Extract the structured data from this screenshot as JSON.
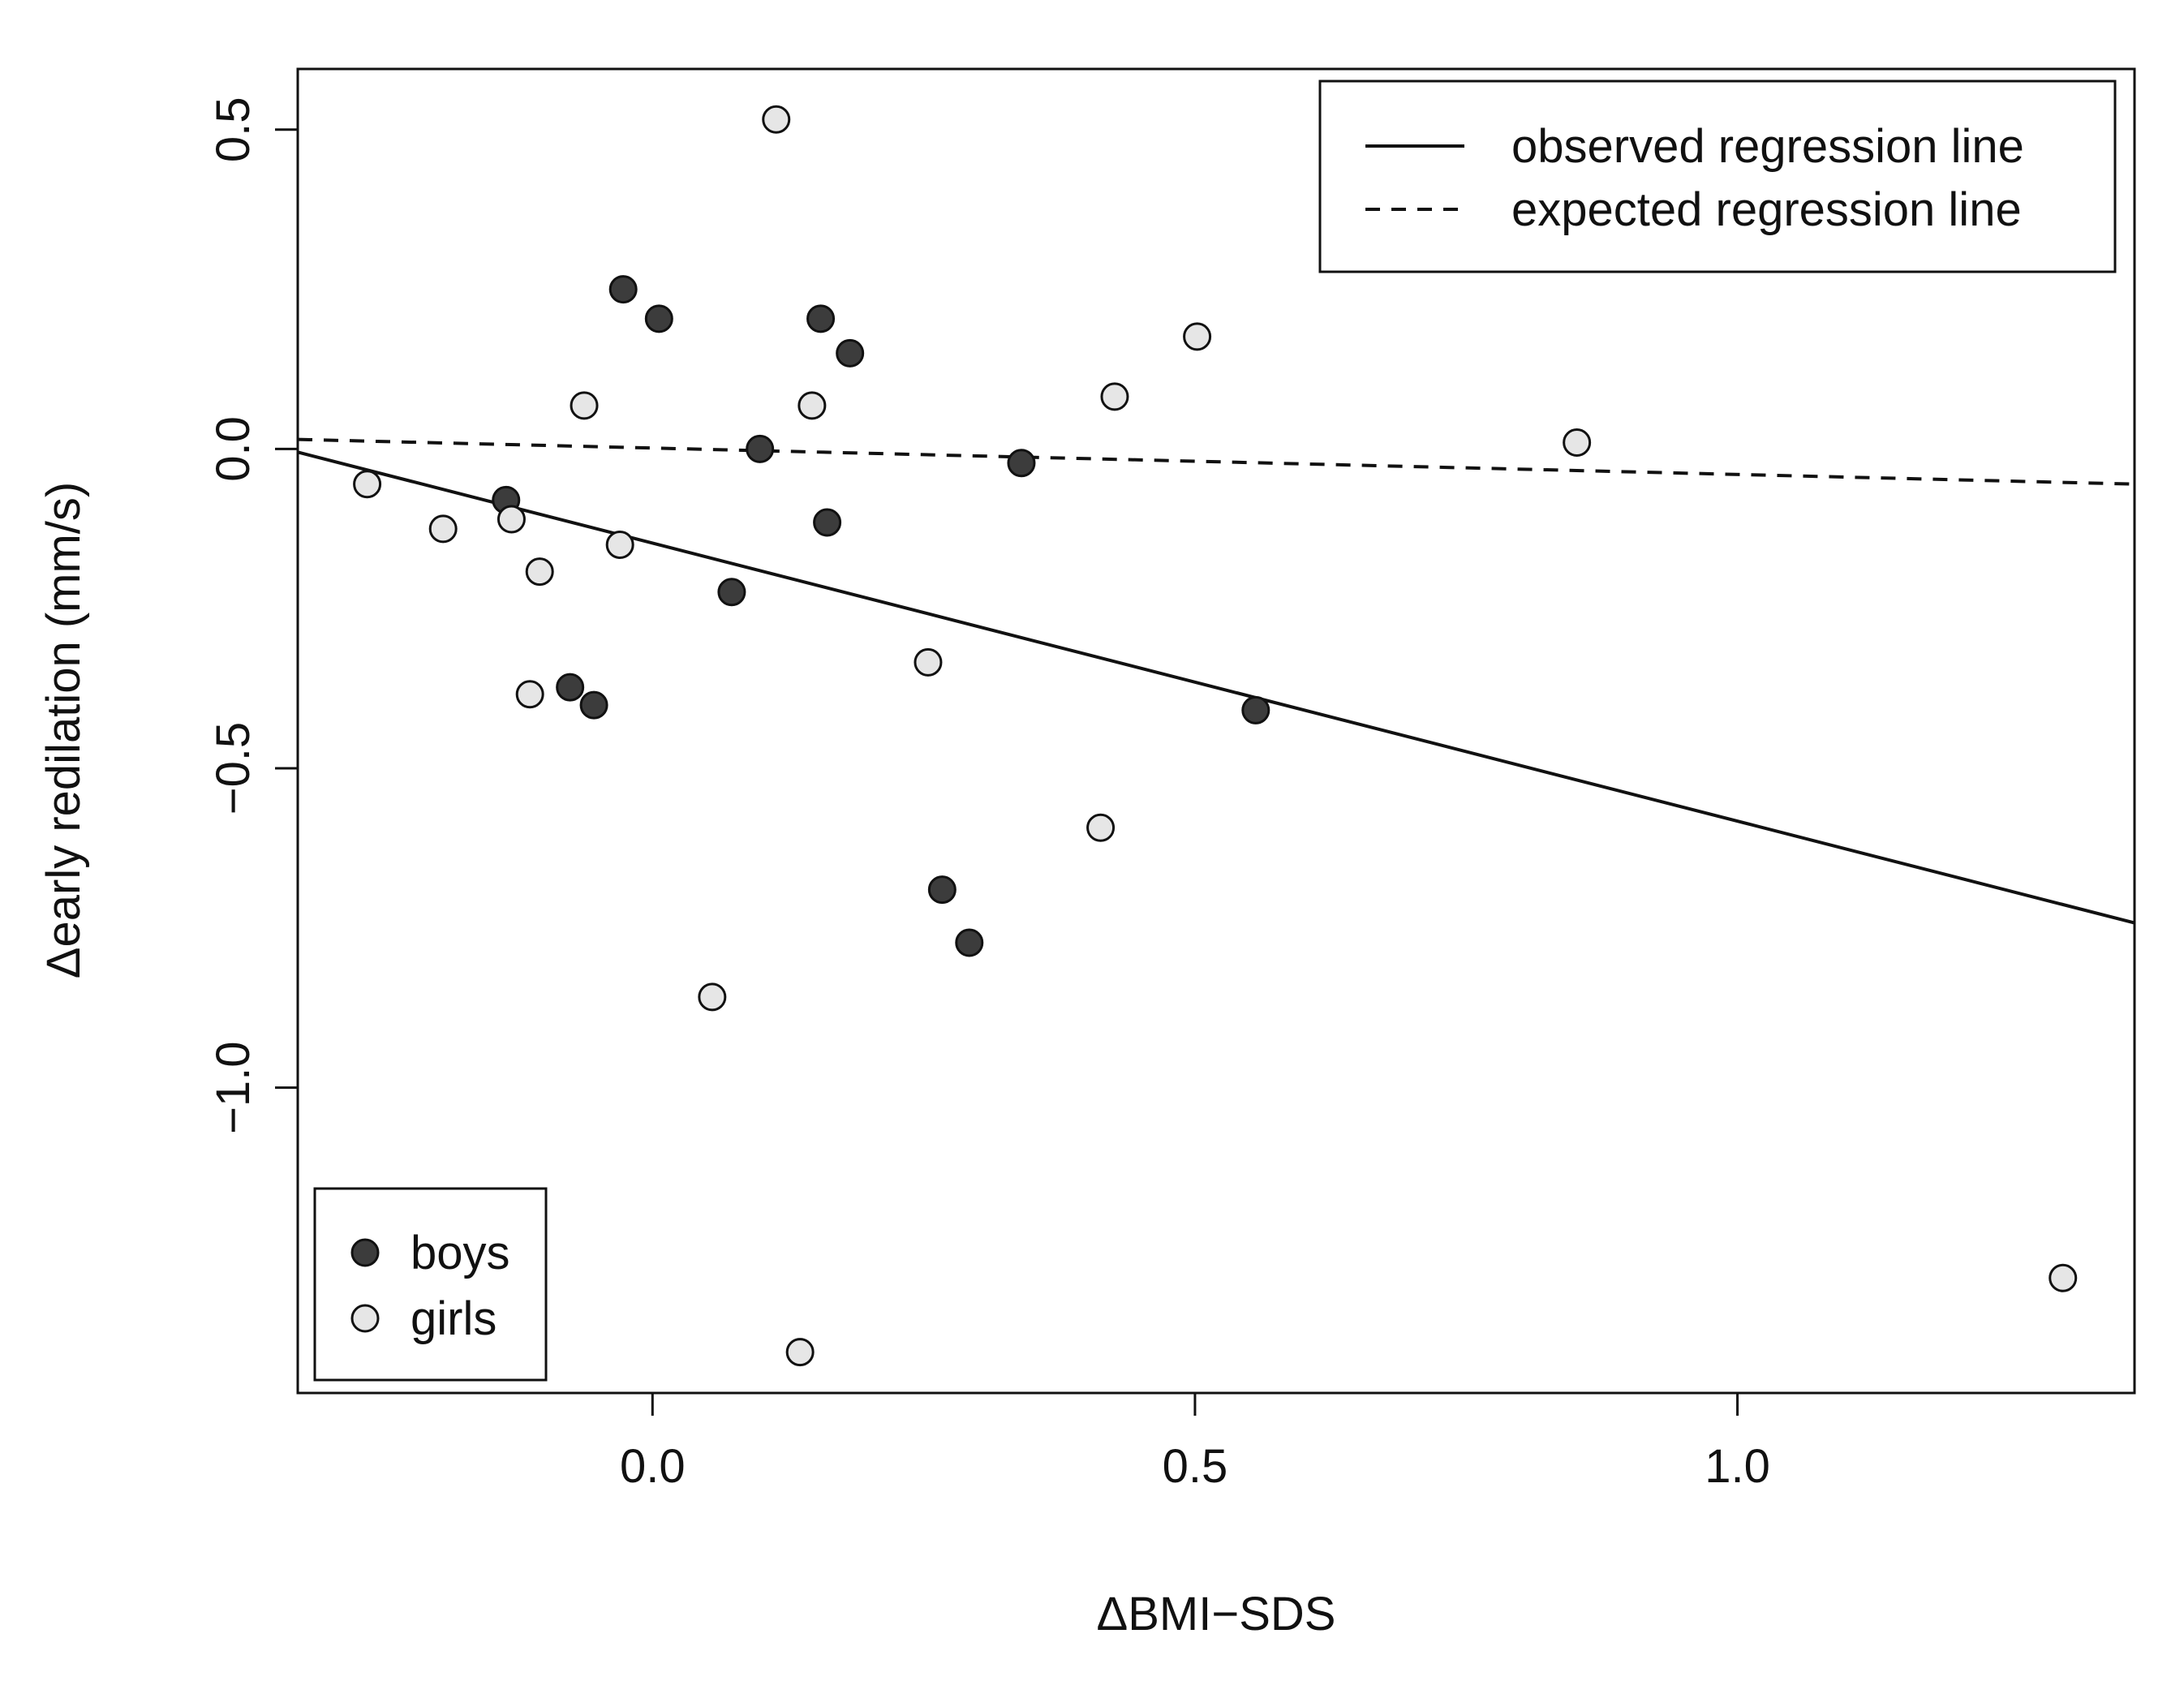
{
  "chart_data": {
    "type": "scatter",
    "title": "",
    "xlabel": "ΔBMI−SDS",
    "ylabel": "Δearly redilation (mm/s)",
    "xlim": [
      -0.327,
      1.366
    ],
    "ylim": [
      -1.478,
      0.595
    ],
    "x_ticks": [
      {
        "value": 0.0,
        "label": "0.0"
      },
      {
        "value": 0.5,
        "label": "0.5"
      },
      {
        "value": 1.0,
        "label": "1.0"
      }
    ],
    "y_ticks": [
      {
        "value": 0.5,
        "label": "0.5"
      },
      {
        "value": 0.0,
        "label": "0.0"
      },
      {
        "value": -0.5,
        "label": "−0.5"
      },
      {
        "value": -1.0,
        "label": "−1.0"
      }
    ],
    "lines": [
      {
        "name": "observed regression line",
        "style": "solid",
        "x": [
          -0.327,
          1.366
        ],
        "y": [
          -0.005,
          -0.742
        ]
      },
      {
        "name": "expected regression line",
        "style": "dashed",
        "x": [
          -0.327,
          1.366
        ],
        "y": [
          0.015,
          -0.055
        ]
      }
    ],
    "line_legend": {
      "position": "top-right",
      "entries": [
        "observed regression line",
        "expected regression line"
      ]
    },
    "series": [
      {
        "name": "boys",
        "color": "#3c3c3c",
        "points": [
          [
            -0.027,
            0.25
          ],
          [
            0.006,
            0.204
          ],
          [
            0.155,
            0.204
          ],
          [
            0.182,
            0.15
          ],
          [
            0.099,
            0.0
          ],
          [
            0.34,
            -0.022
          ],
          [
            -0.135,
            -0.08
          ],
          [
            0.161,
            -0.115
          ],
          [
            0.073,
            -0.224
          ],
          [
            -0.076,
            -0.373
          ],
          [
            -0.054,
            -0.401
          ],
          [
            0.556,
            -0.409
          ],
          [
            0.267,
            -0.69
          ],
          [
            0.292,
            -0.773
          ]
        ]
      },
      {
        "name": "girls",
        "color": "#e6e6e6",
        "points": [
          [
            0.114,
            0.516
          ],
          [
            0.502,
            0.176
          ],
          [
            0.426,
            0.082
          ],
          [
            -0.063,
            0.068
          ],
          [
            0.147,
            0.068
          ],
          [
            0.852,
            0.01
          ],
          [
            -0.263,
            -0.055
          ],
          [
            -0.13,
            -0.11
          ],
          [
            -0.193,
            -0.125
          ],
          [
            -0.03,
            -0.15
          ],
          [
            -0.104,
            -0.192
          ],
          [
            -0.113,
            -0.384
          ],
          [
            0.254,
            -0.334
          ],
          [
            0.413,
            -0.593
          ],
          [
            0.055,
            -0.858
          ],
          [
            0.136,
            -1.414
          ],
          [
            1.3,
            -1.298
          ]
        ]
      }
    ],
    "point_legend": {
      "position": "bottom-left",
      "entries": [
        "boys",
        "girls"
      ]
    }
  }
}
